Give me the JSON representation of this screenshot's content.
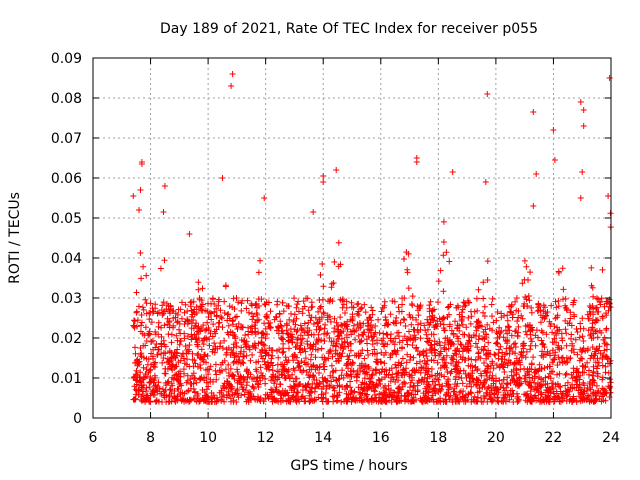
{
  "chart_data": {
    "type": "scatter",
    "title": "Day 189 of 2021, Rate Of TEC Index for receiver p055",
    "xlabel": "GPS time / hours",
    "ylabel": "ROTI / TECUs",
    "xlim": [
      6,
      24
    ],
    "ylim": [
      0,
      0.09
    ],
    "x_ticks": [
      "6",
      "8",
      "10",
      "12",
      "14",
      "16",
      "18",
      "20",
      "22",
      "24"
    ],
    "y_ticks": [
      "0",
      "0.01",
      "0.02",
      "0.03",
      "0.04",
      "0.05",
      "0.06",
      "0.07",
      "0.08",
      "0.09"
    ],
    "grid": true,
    "marker": "+",
    "series": [
      {
        "name": "ROTI",
        "color": "#ff0000",
        "x_range": [
          7.4,
          24.0
        ],
        "typical_range": [
          0.004,
          0.03
        ],
        "notable_points": [
          {
            "x": 7.4,
            "y": 0.0555
          },
          {
            "x": 7.7,
            "y": 0.064
          },
          {
            "x": 7.7,
            "y": 0.0635
          },
          {
            "x": 7.65,
            "y": 0.057
          },
          {
            "x": 7.6,
            "y": 0.052
          },
          {
            "x": 8.5,
            "y": 0.058
          },
          {
            "x": 8.45,
            "y": 0.0515
          },
          {
            "x": 10.5,
            "y": 0.06
          },
          {
            "x": 10.85,
            "y": 0.086
          },
          {
            "x": 10.8,
            "y": 0.083
          },
          {
            "x": 9.35,
            "y": 0.046
          },
          {
            "x": 11.95,
            "y": 0.055
          },
          {
            "x": 14.0,
            "y": 0.0605
          },
          {
            "x": 14.0,
            "y": 0.059
          },
          {
            "x": 14.45,
            "y": 0.062
          },
          {
            "x": 13.65,
            "y": 0.0515
          },
          {
            "x": 17.25,
            "y": 0.065
          },
          {
            "x": 17.25,
            "y": 0.064
          },
          {
            "x": 18.5,
            "y": 0.0615
          },
          {
            "x": 19.7,
            "y": 0.081
          },
          {
            "x": 19.65,
            "y": 0.059
          },
          {
            "x": 21.3,
            "y": 0.0765
          },
          {
            "x": 21.4,
            "y": 0.061
          },
          {
            "x": 21.3,
            "y": 0.053
          },
          {
            "x": 22.0,
            "y": 0.072
          },
          {
            "x": 22.05,
            "y": 0.0645
          },
          {
            "x": 22.95,
            "y": 0.079
          },
          {
            "x": 23.05,
            "y": 0.077
          },
          {
            "x": 23.05,
            "y": 0.073
          },
          {
            "x": 23.0,
            "y": 0.0615
          },
          {
            "x": 22.95,
            "y": 0.055
          },
          {
            "x": 23.95,
            "y": 0.085
          },
          {
            "x": 23.9,
            "y": 0.0555
          }
        ]
      }
    ]
  }
}
